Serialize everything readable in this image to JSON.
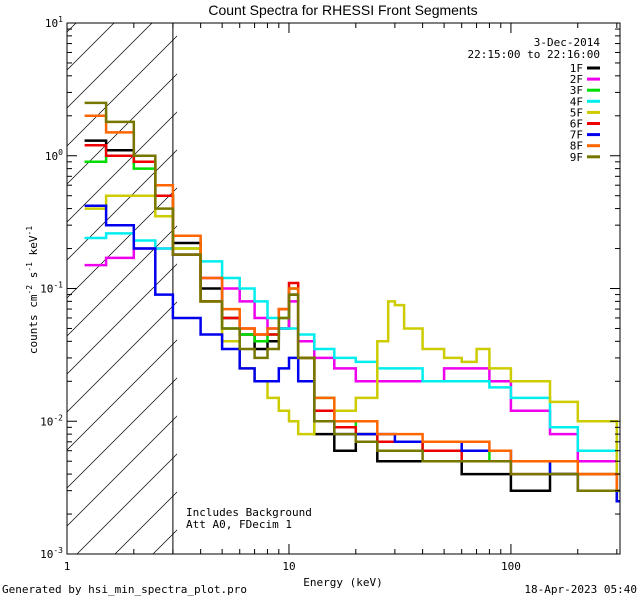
{
  "chart_data": {
    "type": "line",
    "title": "Count Spectra for RHESSI Front Segments",
    "xlabel": "Energy (keV)",
    "ylabel_parts": [
      "counts cm",
      "-2",
      " s",
      "-1",
      " keV",
      "-1"
    ],
    "xscale": "log",
    "yscale": "log",
    "xlim": [
      1,
      310
    ],
    "ylim": [
      0.001,
      10
    ],
    "x_ticks": [
      {
        "value": 1,
        "label": "1"
      },
      {
        "value": 10,
        "label": "10"
      },
      {
        "value": 100,
        "label": "100"
      }
    ],
    "y_ticks": [
      {
        "value": 0.001,
        "base": "10",
        "exp": "-3"
      },
      {
        "value": 0.01,
        "base": "10",
        "exp": "-2"
      },
      {
        "value": 0.1,
        "base": "10",
        "exp": "-1"
      },
      {
        "value": 1,
        "base": "10",
        "exp": "0"
      },
      {
        "value": 10,
        "base": "10",
        "exp": "1"
      }
    ],
    "date": "3-Dec-2014",
    "time_range": "22:15:00 to 22:16:00",
    "attenuator_threshold_kev": 3,
    "notes": [
      "Includes Background",
      "Att A0, FDecim 1"
    ],
    "series": [
      {
        "name": "1F",
        "color": "#000000",
        "points": [
          [
            1.2,
            1.3
          ],
          [
            1.5,
            1.1
          ],
          [
            2,
            0.9
          ],
          [
            2.5,
            0.5
          ],
          [
            3,
            0.22
          ],
          [
            4,
            0.1
          ],
          [
            5,
            0.06
          ],
          [
            6,
            0.045
          ],
          [
            7,
            0.035
          ],
          [
            8,
            0.04
          ],
          [
            9,
            0.05
          ],
          [
            10,
            0.09
          ],
          [
            11,
            0.03
          ],
          [
            13,
            0.008
          ],
          [
            16,
            0.006
          ],
          [
            20,
            0.007
          ],
          [
            25,
            0.005
          ],
          [
            30,
            0.005
          ],
          [
            40,
            0.005
          ],
          [
            60,
            0.004
          ],
          [
            80,
            0.004
          ],
          [
            100,
            0.003
          ],
          [
            150,
            0.004
          ],
          [
            200,
            0.003
          ],
          [
            300,
            0.0025
          ]
        ]
      },
      {
        "name": "2F",
        "color": "#ee00ee",
        "points": [
          [
            1.2,
            0.15
          ],
          [
            1.5,
            0.17
          ],
          [
            2,
            0.2
          ],
          [
            2.5,
            0.2
          ],
          [
            3,
            0.18
          ],
          [
            4,
            0.12
          ],
          [
            5,
            0.1
          ],
          [
            6,
            0.08
          ],
          [
            7,
            0.06
          ],
          [
            8,
            0.05
          ],
          [
            9,
            0.05
          ],
          [
            10,
            0.08
          ],
          [
            11,
            0.04
          ],
          [
            13,
            0.03
          ],
          [
            16,
            0.025
          ],
          [
            20,
            0.02
          ],
          [
            25,
            0.02
          ],
          [
            30,
            0.02
          ],
          [
            40,
            0.02
          ],
          [
            50,
            0.025
          ],
          [
            60,
            0.025
          ],
          [
            80,
            0.02
          ],
          [
            100,
            0.012
          ],
          [
            150,
            0.008
          ],
          [
            200,
            0.005
          ],
          [
            300,
            0.003
          ]
        ]
      },
      {
        "name": "3F",
        "color": "#00dd00",
        "points": [
          [
            1.2,
            0.9
          ],
          [
            1.5,
            1
          ],
          [
            2,
            0.8
          ],
          [
            2.5,
            0.5
          ],
          [
            3,
            0.2
          ],
          [
            4,
            0.08
          ],
          [
            5,
            0.05
          ],
          [
            6,
            0.045
          ],
          [
            7,
            0.04
          ],
          [
            8,
            0.045
          ],
          [
            9,
            0.06
          ],
          [
            10,
            0.1
          ],
          [
            11,
            0.03
          ],
          [
            13,
            0.015
          ],
          [
            16,
            0.01
          ],
          [
            20,
            0.008
          ],
          [
            25,
            0.007
          ],
          [
            30,
            0.007
          ],
          [
            40,
            0.006
          ],
          [
            60,
            0.006
          ],
          [
            80,
            0.005
          ],
          [
            100,
            0.005
          ],
          [
            150,
            0.004
          ],
          [
            200,
            0.004
          ],
          [
            300,
            0.003
          ]
        ]
      },
      {
        "name": "4F",
        "color": "#00eeee",
        "points": [
          [
            1.2,
            0.24
          ],
          [
            1.5,
            0.26
          ],
          [
            2,
            0.23
          ],
          [
            2.5,
            0.2
          ],
          [
            3,
            0.18
          ],
          [
            4,
            0.16
          ],
          [
            5,
            0.12
          ],
          [
            6,
            0.1
          ],
          [
            7,
            0.08
          ],
          [
            8,
            0.06
          ],
          [
            9,
            0.05
          ],
          [
            10,
            0.05
          ],
          [
            11,
            0.045
          ],
          [
            13,
            0.035
          ],
          [
            16,
            0.03
          ],
          [
            20,
            0.028
          ],
          [
            25,
            0.025
          ],
          [
            30,
            0.025
          ],
          [
            40,
            0.02
          ],
          [
            50,
            0.02
          ],
          [
            60,
            0.02
          ],
          [
            80,
            0.018
          ],
          [
            100,
            0.015
          ],
          [
            150,
            0.009
          ],
          [
            200,
            0.006
          ],
          [
            300,
            0.003
          ]
        ]
      },
      {
        "name": "5F",
        "color": "#cccc00",
        "points": [
          [
            1.2,
            0.4
          ],
          [
            1.5,
            0.5
          ],
          [
            2,
            0.5
          ],
          [
            2.5,
            0.35
          ],
          [
            3,
            0.2
          ],
          [
            4,
            0.08
          ],
          [
            5,
            0.04
          ],
          [
            6,
            0.025
          ],
          [
            7,
            0.02
          ],
          [
            8,
            0.015
          ],
          [
            9,
            0.012
          ],
          [
            10,
            0.01
          ],
          [
            11,
            0.008
          ],
          [
            13,
            0.01
          ],
          [
            16,
            0.012
          ],
          [
            20,
            0.015
          ],
          [
            25,
            0.04
          ],
          [
            28,
            0.08
          ],
          [
            30,
            0.075
          ],
          [
            33,
            0.05
          ],
          [
            40,
            0.035
          ],
          [
            50,
            0.03
          ],
          [
            60,
            0.028
          ],
          [
            70,
            0.035
          ],
          [
            80,
            0.025
          ],
          [
            100,
            0.02
          ],
          [
            150,
            0.014
          ],
          [
            200,
            0.01
          ],
          [
            300,
            0.004
          ]
        ]
      },
      {
        "name": "6F",
        "color": "#ee0000",
        "points": [
          [
            1.2,
            1.2
          ],
          [
            1.5,
            1
          ],
          [
            2,
            0.9
          ],
          [
            2.5,
            0.5
          ],
          [
            3,
            0.18
          ],
          [
            4,
            0.08
          ],
          [
            5,
            0.06
          ],
          [
            6,
            0.05
          ],
          [
            7,
            0.045
          ],
          [
            8,
            0.045
          ],
          [
            9,
            0.07
          ],
          [
            10,
            0.11
          ],
          [
            11,
            0.03
          ],
          [
            13,
            0.012
          ],
          [
            16,
            0.009
          ],
          [
            20,
            0.008
          ],
          [
            25,
            0.007
          ],
          [
            30,
            0.007
          ],
          [
            40,
            0.006
          ],
          [
            60,
            0.005
          ],
          [
            80,
            0.005
          ],
          [
            100,
            0.004
          ],
          [
            150,
            0.004
          ],
          [
            200,
            0.004
          ],
          [
            300,
            0.003
          ]
        ]
      },
      {
        "name": "7F",
        "color": "#0000ee",
        "points": [
          [
            1.2,
            0.42
          ],
          [
            1.5,
            0.3
          ],
          [
            2,
            0.2
          ],
          [
            2.5,
            0.09
          ],
          [
            3,
            0.06
          ],
          [
            4,
            0.045
          ],
          [
            5,
            0.035
          ],
          [
            6,
            0.025
          ],
          [
            7,
            0.02
          ],
          [
            8,
            0.02
          ],
          [
            9,
            0.025
          ],
          [
            10,
            0.03
          ],
          [
            11,
            0.02
          ],
          [
            13,
            0.01
          ],
          [
            16,
            0.008
          ],
          [
            20,
            0.008
          ],
          [
            25,
            0.008
          ],
          [
            30,
            0.007
          ],
          [
            40,
            0.007
          ],
          [
            60,
            0.006
          ],
          [
            80,
            0.006
          ],
          [
            100,
            0.005
          ],
          [
            150,
            0.004
          ],
          [
            200,
            0.003
          ],
          [
            300,
            0.0025
          ]
        ]
      },
      {
        "name": "8F",
        "color": "#ff6600",
        "points": [
          [
            1.2,
            2
          ],
          [
            1.5,
            1.5
          ],
          [
            2,
            1
          ],
          [
            2.5,
            0.6
          ],
          [
            3,
            0.25
          ],
          [
            4,
            0.12
          ],
          [
            5,
            0.07
          ],
          [
            6,
            0.05
          ],
          [
            7,
            0.045
          ],
          [
            8,
            0.05
          ],
          [
            9,
            0.07
          ],
          [
            10,
            0.1
          ],
          [
            11,
            0.03
          ],
          [
            13,
            0.015
          ],
          [
            16,
            0.01
          ],
          [
            20,
            0.01
          ],
          [
            25,
            0.008
          ],
          [
            30,
            0.008
          ],
          [
            40,
            0.007
          ],
          [
            60,
            0.007
          ],
          [
            80,
            0.006
          ],
          [
            100,
            0.005
          ],
          [
            150,
            0.005
          ],
          [
            200,
            0.004
          ],
          [
            300,
            0.003
          ]
        ]
      },
      {
        "name": "9F",
        "color": "#777700",
        "points": [
          [
            1.2,
            2.5
          ],
          [
            1.5,
            1.8
          ],
          [
            2,
            1
          ],
          [
            2.5,
            0.4
          ],
          [
            3,
            0.18
          ],
          [
            4,
            0.08
          ],
          [
            5,
            0.05
          ],
          [
            6,
            0.035
          ],
          [
            7,
            0.03
          ],
          [
            8,
            0.035
          ],
          [
            9,
            0.06
          ],
          [
            10,
            0.09
          ],
          [
            11,
            0.03
          ],
          [
            13,
            0.01
          ],
          [
            16,
            0.008
          ],
          [
            20,
            0.007
          ],
          [
            25,
            0.006
          ],
          [
            30,
            0.006
          ],
          [
            40,
            0.005
          ],
          [
            60,
            0.005
          ],
          [
            80,
            0.005
          ],
          [
            100,
            0.004
          ],
          [
            150,
            0.004
          ],
          [
            200,
            0.003
          ],
          [
            300,
            0.003
          ]
        ]
      }
    ]
  },
  "footer": {
    "left": "Generated by hsi_min_spectra_plot.pro",
    "right": "18-Apr-2023 05:40"
  }
}
